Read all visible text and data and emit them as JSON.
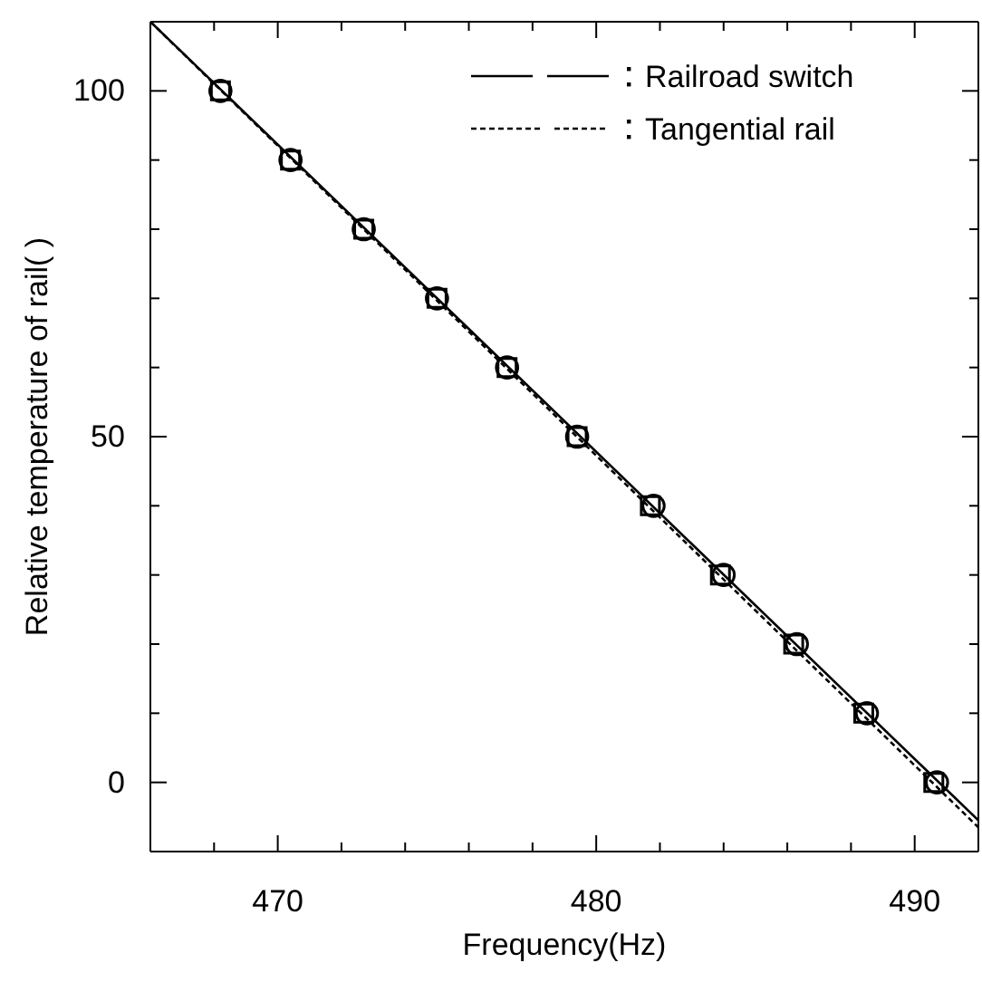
{
  "chart_data": {
    "type": "scatter",
    "xlabel": "Frequency(Hz)",
    "ylabel": "Relative temperature of rail(  )",
    "xlim": [
      466,
      492
    ],
    "xticks": [
      {
        "value": 466,
        "label": null
      },
      {
        "value": 468,
        "label": null
      },
      470,
      {
        "value": 472,
        "label": null
      },
      {
        "value": 474,
        "label": null
      },
      {
        "value": 476,
        "label": null
      },
      {
        "value": 478,
        "label": null
      },
      480,
      {
        "value": 482,
        "label": null
      },
      {
        "value": 484,
        "label": null
      },
      {
        "value": 486,
        "label": null
      },
      {
        "value": 488,
        "label": null
      },
      490,
      {
        "value": 492,
        "label": null
      }
    ],
    "ylim": [
      -10,
      110
    ],
    "yticks": [
      {
        "value": -10,
        "label": null
      },
      0,
      {
        "value": 10,
        "label": null
      },
      {
        "value": 20,
        "label": null
      },
      {
        "value": 30,
        "label": null
      },
      {
        "value": 40,
        "label": null
      },
      50,
      {
        "value": 60,
        "label": null
      },
      {
        "value": 70,
        "label": null
      },
      {
        "value": 80,
        "label": null
      },
      {
        "value": 90,
        "label": null
      },
      100,
      {
        "value": 110,
        "label": null
      }
    ],
    "legend": "top right",
    "grid": false,
    "series": [
      {
        "type": "line",
        "name": "Railroad switch",
        "color": "#000000",
        "line_style": "solid",
        "x": [
          466,
          492
        ],
        "values": [
          110,
          -5.5
        ]
      },
      {
        "type": "line",
        "name": "Tangential rail",
        "color": "#000000",
        "line_style": "dotted",
        "x": [
          466,
          492
        ],
        "values": [
          110,
          -6.5
        ]
      },
      {
        "marker": "square",
        "color": "#000000",
        "x": [
          468.2,
          470.4,
          472.7,
          475.0,
          477.2,
          479.4,
          481.7,
          483.9,
          486.2,
          488.4,
          490.6
        ],
        "values": [
          100,
          90,
          80,
          70,
          60,
          50,
          40,
          30,
          20,
          10,
          0
        ]
      },
      {
        "marker": "circle",
        "color": "#000000",
        "x": [
          468.2,
          470.4,
          472.7,
          475.0,
          477.2,
          479.4,
          481.8,
          484.0,
          486.3,
          488.5,
          490.7
        ],
        "values": [
          100,
          90,
          80,
          70,
          60,
          50,
          40,
          30,
          20,
          10,
          0
        ]
      }
    ]
  }
}
